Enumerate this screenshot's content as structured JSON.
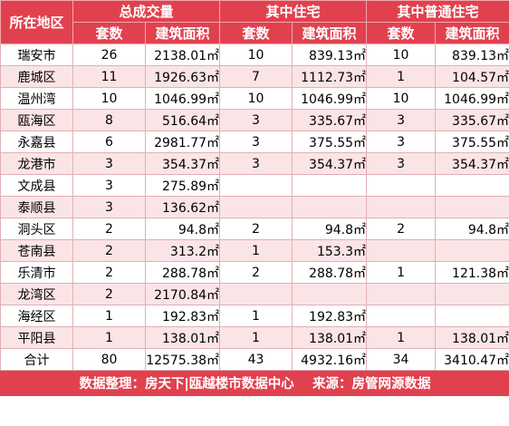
{
  "header": {
    "region": "所在地区",
    "group_total": "总成交量",
    "group_residential": "其中住宅",
    "group_ordinary": "其中普通住宅",
    "sub_count": "套数",
    "sub_area": "建筑面积"
  },
  "rows": [
    {
      "region": "瑞安市",
      "t_count": "26",
      "t_area": "2138.01㎡",
      "r_count": "10",
      "r_area": "839.13㎡",
      "o_count": "10",
      "o_area": "839.13㎡"
    },
    {
      "region": "鹿城区",
      "t_count": "11",
      "t_area": "1926.63㎡",
      "r_count": "7",
      "r_area": "1112.73㎡",
      "o_count": "1",
      "o_area": "104.57㎡"
    },
    {
      "region": "温州湾",
      "t_count": "10",
      "t_area": "1046.99㎡",
      "r_count": "10",
      "r_area": "1046.99㎡",
      "o_count": "10",
      "o_area": "1046.99㎡"
    },
    {
      "region": "瓯海区",
      "t_count": "8",
      "t_area": "516.64㎡",
      "r_count": "3",
      "r_area": "335.67㎡",
      "o_count": "3",
      "o_area": "335.67㎡"
    },
    {
      "region": "永嘉县",
      "t_count": "6",
      "t_area": "2981.77㎡",
      "r_count": "3",
      "r_area": "375.55㎡",
      "o_count": "3",
      "o_area": "375.55㎡"
    },
    {
      "region": "龙港市",
      "t_count": "3",
      "t_area": "354.37㎡",
      "r_count": "3",
      "r_area": "354.37㎡",
      "o_count": "3",
      "o_area": "354.37㎡"
    },
    {
      "region": "文成县",
      "t_count": "3",
      "t_area": "275.89㎡",
      "r_count": "",
      "r_area": "",
      "o_count": "",
      "o_area": ""
    },
    {
      "region": "泰顺县",
      "t_count": "3",
      "t_area": "136.62㎡",
      "r_count": "",
      "r_area": "",
      "o_count": "",
      "o_area": ""
    },
    {
      "region": "洞头区",
      "t_count": "2",
      "t_area": "94.8㎡",
      "r_count": "2",
      "r_area": "94.8㎡",
      "o_count": "2",
      "o_area": "94.8㎡"
    },
    {
      "region": "苍南县",
      "t_count": "2",
      "t_area": "313.2㎡",
      "r_count": "1",
      "r_area": "153.3㎡",
      "o_count": "",
      "o_area": ""
    },
    {
      "region": "乐清市",
      "t_count": "2",
      "t_area": "288.78㎡",
      "r_count": "2",
      "r_area": "288.78㎡",
      "o_count": "1",
      "o_area": "121.38㎡"
    },
    {
      "region": "龙湾区",
      "t_count": "2",
      "t_area": "2170.84㎡",
      "r_count": "",
      "r_area": "",
      "o_count": "",
      "o_area": ""
    },
    {
      "region": "海经区",
      "t_count": "1",
      "t_area": "192.83㎡",
      "r_count": "1",
      "r_area": "192.83㎡",
      "o_count": "",
      "o_area": ""
    },
    {
      "region": "平阳县",
      "t_count": "1",
      "t_area": "138.01㎡",
      "r_count": "1",
      "r_area": "138.01㎡",
      "o_count": "1",
      "o_area": "138.01㎡"
    }
  ],
  "total": {
    "region": "合计",
    "t_count": "80",
    "t_area": "12575.38㎡",
    "r_count": "43",
    "r_area": "4932.16㎡",
    "o_count": "34",
    "o_area": "3410.47㎡"
  },
  "footer": {
    "text": "数据整理：房天下|瓯越楼市数据中心    来源：房管网源数据"
  },
  "colors": {
    "header_bg": "#e1414f",
    "stripe": "#fbe4e6"
  }
}
